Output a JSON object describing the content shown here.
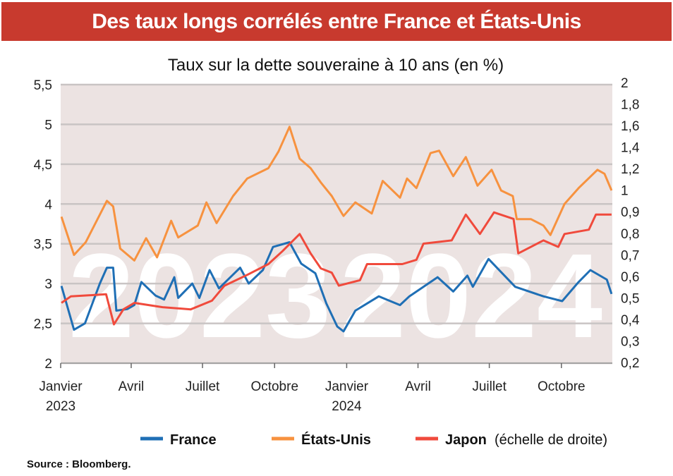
{
  "title": "Des taux longs corrélés entre France et États-Unis",
  "source": "Source : Bloomberg.",
  "chart_data": {
    "type": "line",
    "title": "Taux sur la dette souveraine à 10 ans (en %)",
    "x_domain": [
      "2023-01-01",
      "2024-12-05"
    ],
    "x_ticks": [
      {
        "date": "2023-01-01",
        "label": "Janvier",
        "sub": "2023"
      },
      {
        "date": "2023-04-01",
        "label": "Avril",
        "sub": ""
      },
      {
        "date": "2023-07-01",
        "label": "Juillet",
        "sub": ""
      },
      {
        "date": "2023-10-01",
        "label": "Octobre",
        "sub": ""
      },
      {
        "date": "2024-01-01",
        "label": "Janvier",
        "sub": "2024"
      },
      {
        "date": "2024-04-01",
        "label": "Avril",
        "sub": ""
      },
      {
        "date": "2024-07-01",
        "label": "Juillet",
        "sub": ""
      },
      {
        "date": "2024-10-01",
        "label": "Octobre",
        "sub": ""
      }
    ],
    "left_axis": {
      "ylim": [
        2,
        5.5
      ],
      "ticks": [
        2,
        2.5,
        3,
        3.5,
        4,
        4.5,
        5,
        5.5
      ],
      "labels": [
        "2",
        "2,5",
        "3",
        "3,5",
        "4",
        "4,5",
        "5",
        "5,5"
      ]
    },
    "right_axis": {
      "ticks": [
        0.2,
        0.3,
        0.4,
        0.5,
        0.6,
        0.7,
        0.8,
        0.9,
        1,
        1.2,
        1.4,
        1.6,
        1.8,
        2
      ],
      "labels": [
        "0,2",
        "0,3",
        "0,4",
        "0,5",
        "0,6",
        "0,7",
        "0,8",
        "0,9",
        "1",
        "1,2",
        "1,4",
        "1,6",
        "1,8",
        "2"
      ]
    },
    "grid": true,
    "background_years": [
      "2023",
      "2024"
    ],
    "legend": {
      "placement": "bottom",
      "note": "(échelle de droite)"
    },
    "series": [
      {
        "name": "France",
        "axis": "left",
        "color": "#1f6fb5",
        "points": [
          [
            "2023-01-02",
            2.97
          ],
          [
            "2023-01-18",
            2.42
          ],
          [
            "2023-02-01",
            2.5
          ],
          [
            "2023-02-20",
            3.0
          ],
          [
            "2023-03-01",
            3.2
          ],
          [
            "2023-03-09",
            3.2
          ],
          [
            "2023-03-13",
            2.66
          ],
          [
            "2023-03-27",
            2.68
          ],
          [
            "2023-04-05",
            2.73
          ],
          [
            "2023-04-14",
            3.02
          ],
          [
            "2023-05-02",
            2.85
          ],
          [
            "2023-05-13",
            2.8
          ],
          [
            "2023-05-26",
            3.08
          ],
          [
            "2023-05-31",
            2.82
          ],
          [
            "2023-06-18",
            3.0
          ],
          [
            "2023-06-27",
            2.82
          ],
          [
            "2023-07-10",
            3.17
          ],
          [
            "2023-07-22",
            2.94
          ],
          [
            "2023-08-18",
            3.2
          ],
          [
            "2023-08-29",
            3.0
          ],
          [
            "2023-09-16",
            3.17
          ],
          [
            "2023-09-29",
            3.46
          ],
          [
            "2023-10-20",
            3.52
          ],
          [
            "2023-11-04",
            3.25
          ],
          [
            "2023-11-22",
            3.13
          ],
          [
            "2023-12-06",
            2.75
          ],
          [
            "2023-12-20",
            2.46
          ],
          [
            "2023-12-28",
            2.4
          ],
          [
            "2024-01-12",
            2.66
          ],
          [
            "2024-02-11",
            2.84
          ],
          [
            "2024-03-09",
            2.73
          ],
          [
            "2024-03-21",
            2.84
          ],
          [
            "2024-04-26",
            3.08
          ],
          [
            "2024-05-16",
            2.9
          ],
          [
            "2024-06-03",
            3.1
          ],
          [
            "2024-06-10",
            2.96
          ],
          [
            "2024-06-30",
            3.31
          ],
          [
            "2024-08-03",
            2.96
          ],
          [
            "2024-09-08",
            2.84
          ],
          [
            "2024-10-02",
            2.78
          ],
          [
            "2024-10-23",
            3.02
          ],
          [
            "2024-11-07",
            3.17
          ],
          [
            "2024-11-28",
            3.05
          ],
          [
            "2024-12-04",
            2.87
          ]
        ]
      },
      {
        "name": "États-Unis",
        "axis": "left",
        "color": "#f7923f",
        "points": [
          [
            "2023-01-02",
            3.84
          ],
          [
            "2023-01-18",
            3.36
          ],
          [
            "2023-02-02",
            3.52
          ],
          [
            "2023-03-01",
            4.04
          ],
          [
            "2023-03-09",
            3.97
          ],
          [
            "2023-03-18",
            3.44
          ],
          [
            "2023-04-05",
            3.29
          ],
          [
            "2023-04-20",
            3.57
          ],
          [
            "2023-05-04",
            3.33
          ],
          [
            "2023-05-22",
            3.79
          ],
          [
            "2023-05-31",
            3.58
          ],
          [
            "2023-06-25",
            3.73
          ],
          [
            "2023-07-06",
            4.02
          ],
          [
            "2023-07-19",
            3.76
          ],
          [
            "2023-08-09",
            4.1
          ],
          [
            "2023-08-27",
            4.32
          ],
          [
            "2023-09-23",
            4.45
          ],
          [
            "2023-10-06",
            4.66
          ],
          [
            "2023-10-20",
            4.97
          ],
          [
            "2023-11-02",
            4.57
          ],
          [
            "2023-11-16",
            4.45
          ],
          [
            "2023-11-29",
            4.27
          ],
          [
            "2023-12-13",
            4.1
          ],
          [
            "2023-12-26",
            3.88
          ],
          [
            "2023-12-28",
            3.85
          ],
          [
            "2024-01-12",
            4.02
          ],
          [
            "2024-02-02",
            3.88
          ],
          [
            "2024-02-16",
            4.29
          ],
          [
            "2024-03-09",
            4.08
          ],
          [
            "2024-03-18",
            4.32
          ],
          [
            "2024-03-30",
            4.2
          ],
          [
            "2024-04-17",
            4.64
          ],
          [
            "2024-04-28",
            4.67
          ],
          [
            "2024-05-16",
            4.35
          ],
          [
            "2024-06-01",
            4.59
          ],
          [
            "2024-06-16",
            4.23
          ],
          [
            "2024-07-04",
            4.43
          ],
          [
            "2024-07-16",
            4.17
          ],
          [
            "2024-07-31",
            4.1
          ],
          [
            "2024-08-05",
            3.81
          ],
          [
            "2024-08-23",
            3.81
          ],
          [
            "2024-09-08",
            3.73
          ],
          [
            "2024-09-17",
            3.61
          ],
          [
            "2024-10-05",
            4.0
          ],
          [
            "2024-10-23",
            4.2
          ],
          [
            "2024-11-16",
            4.43
          ],
          [
            "2024-11-25",
            4.38
          ],
          [
            "2024-12-04",
            4.17
          ]
        ]
      },
      {
        "name": "Japon",
        "axis": "right",
        "color": "#f04a3c",
        "points": [
          [
            "2023-01-02",
            0.48
          ],
          [
            "2023-01-14",
            0.51
          ],
          [
            "2023-02-28",
            0.52
          ],
          [
            "2023-03-10",
            0.38
          ],
          [
            "2023-03-22",
            0.45
          ],
          [
            "2023-04-05",
            0.48
          ],
          [
            "2023-05-11",
            0.46
          ],
          [
            "2023-06-16",
            0.45
          ],
          [
            "2023-07-13",
            0.49
          ],
          [
            "2023-07-29",
            0.56
          ],
          [
            "2023-08-27",
            0.61
          ],
          [
            "2023-09-23",
            0.66
          ],
          [
            "2023-10-11",
            0.72
          ],
          [
            "2023-11-02",
            0.8
          ],
          [
            "2023-11-16",
            0.71
          ],
          [
            "2023-11-29",
            0.64
          ],
          [
            "2023-12-13",
            0.62
          ],
          [
            "2023-12-22",
            0.56
          ],
          [
            "2024-01-18",
            0.585
          ],
          [
            "2024-01-27",
            0.66
          ],
          [
            "2024-03-12",
            0.66
          ],
          [
            "2024-03-30",
            0.68
          ],
          [
            "2024-04-08",
            0.755
          ],
          [
            "2024-05-14",
            0.77
          ],
          [
            "2024-06-01",
            0.89
          ],
          [
            "2024-06-19",
            0.8
          ],
          [
            "2024-07-07",
            0.9
          ],
          [
            "2024-08-01",
            0.87
          ],
          [
            "2024-08-07",
            0.71
          ],
          [
            "2024-09-08",
            0.77
          ],
          [
            "2024-09-27",
            0.74
          ],
          [
            "2024-10-05",
            0.8
          ],
          [
            "2024-11-05",
            0.82
          ],
          [
            "2024-11-14",
            0.89
          ],
          [
            "2024-12-04",
            0.89
          ]
        ]
      }
    ]
  }
}
